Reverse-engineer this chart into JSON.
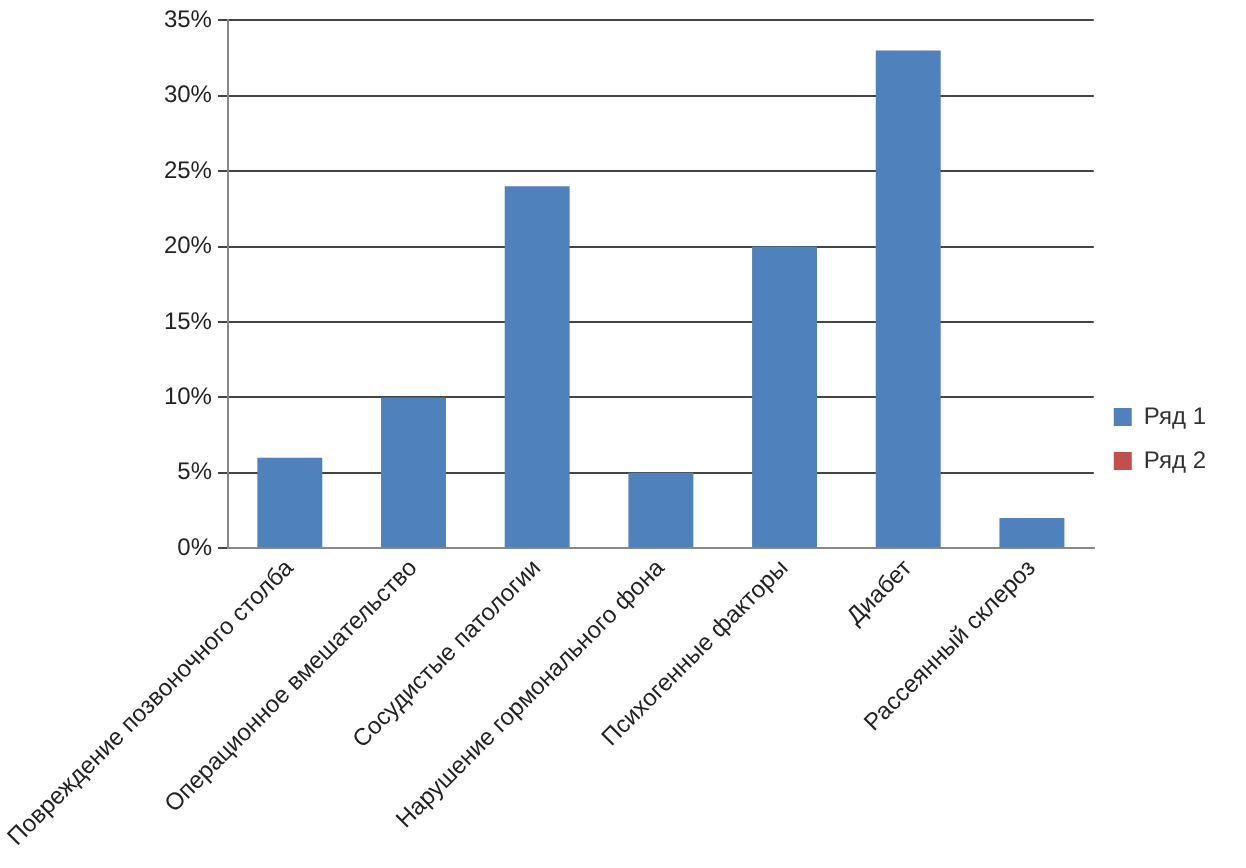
{
  "chart_data": {
    "type": "bar",
    "categories": [
      "Повреждение позвоночного столба",
      "Операционное вмешательство",
      "Сосудистые патологии",
      "Нарушение гормонального фона",
      "Психогенные факторы",
      "Диабет",
      "Рассеянный склероз"
    ],
    "series": [
      {
        "name": "Ряд 1",
        "color": "#4f81bd",
        "values": [
          6,
          10,
          24,
          5,
          20,
          33,
          2
        ]
      },
      {
        "name": "Ряд 2",
        "color": "#c0504d",
        "values": [
          null,
          null,
          null,
          null,
          null,
          null,
          null
        ]
      }
    ],
    "ylim": [
      0,
      35
    ],
    "yticks": [
      {
        "value": 0,
        "label": "0%"
      },
      {
        "value": 5,
        "label": "5%"
      },
      {
        "value": 10,
        "label": "10%"
      },
      {
        "value": 15,
        "label": "15%"
      },
      {
        "value": 20,
        "label": "20%"
      },
      {
        "value": 25,
        "label": "25%"
      },
      {
        "value": 30,
        "label": "30%"
      },
      {
        "value": 35,
        "label": "35%"
      }
    ],
    "grid": "y",
    "legend": "right"
  }
}
